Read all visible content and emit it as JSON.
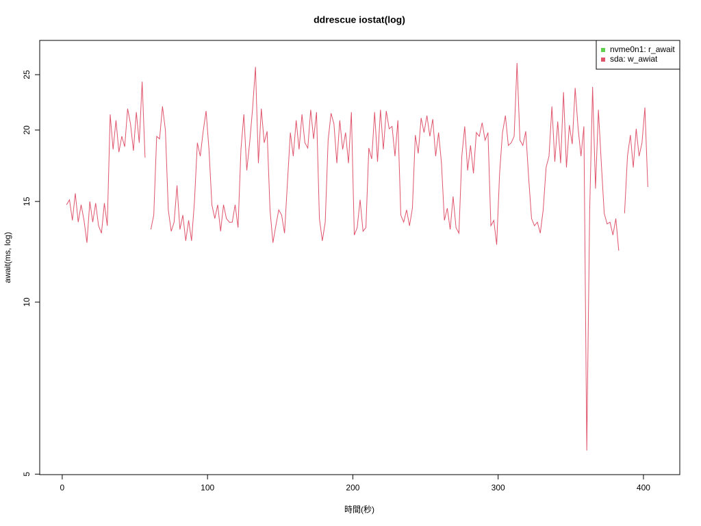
{
  "chart_data": {
    "type": "line",
    "title": "ddrescue iostat(log)",
    "xlabel": "時間(秒)",
    "ylabel": "await(ms, log)",
    "xlim": [
      -15.5,
      425
    ],
    "ylim": [
      4.99,
      28.7
    ],
    "xticks": [
      0,
      100,
      200,
      300,
      400
    ],
    "yticks": [
      5,
      10,
      15,
      20,
      25
    ],
    "ylog": true,
    "legend": "top-right",
    "series": [
      {
        "name": "nvme0n1: r_await",
        "color": "#61D04F",
        "x": [],
        "values": []
      },
      {
        "name": "sda: w_awiat",
        "color": "#DF536B",
        "x": [
          3,
          5,
          7,
          9,
          11,
          13,
          15,
          17,
          19,
          21,
          23,
          25,
          27,
          29,
          31,
          33,
          35,
          37,
          39,
          41,
          43,
          45,
          47,
          49,
          51,
          53,
          55,
          57,
          59,
          61,
          63,
          65,
          67,
          69,
          71,
          73,
          75,
          77,
          79,
          81,
          83,
          85,
          87,
          89,
          91,
          93,
          95,
          97,
          99,
          101,
          103,
          105,
          107,
          109,
          111,
          113,
          115,
          117,
          119,
          121,
          123,
          125,
          127,
          129,
          131,
          133,
          135,
          137,
          139,
          141,
          143,
          145,
          147,
          149,
          151,
          153,
          155,
          157,
          159,
          161,
          163,
          165,
          167,
          169,
          171,
          173,
          175,
          177,
          179,
          181,
          183,
          185,
          187,
          189,
          191,
          193,
          195,
          197,
          199,
          201,
          203,
          205,
          207,
          209,
          211,
          213,
          215,
          217,
          219,
          221,
          223,
          225,
          227,
          229,
          231,
          233,
          235,
          237,
          239,
          241,
          243,
          245,
          247,
          249,
          251,
          253,
          255,
          257,
          259,
          261,
          263,
          265,
          267,
          269,
          271,
          273,
          275,
          277,
          279,
          281,
          283,
          285,
          287,
          289,
          291,
          293,
          295,
          297,
          299,
          301,
          303,
          305,
          307,
          309,
          311,
          313,
          315,
          317,
          319,
          321,
          323,
          325,
          327,
          329,
          331,
          333,
          335,
          337,
          339,
          341,
          343,
          345,
          347,
          349,
          351,
          353,
          355,
          357,
          359,
          361,
          363,
          365,
          367,
          369,
          371,
          373,
          375,
          377,
          379,
          381,
          383,
          385,
          387,
          389,
          391,
          393,
          395,
          397,
          399,
          401,
          403
        ],
        "values": [
          14.8,
          15.1,
          13.9,
          15.5,
          13.8,
          14.8,
          13.9,
          12.7,
          15,
          13.8,
          14.9,
          13.6,
          13.2,
          14.9,
          13.6,
          21.3,
          18.5,
          20.8,
          18.3,
          19.5,
          18.7,
          21.8,
          20.5,
          18.4,
          21.5,
          19,
          24.3,
          17.9,
          null,
          13.4,
          14.2,
          19.5,
          19.3,
          22,
          20,
          14.5,
          13.3,
          13.8,
          16,
          13.4,
          14.2,
          12.8,
          13.9,
          12.8,
          15,
          19,
          18,
          19.9,
          21.6,
          18.5,
          14.8,
          14,
          14.8,
          13.3,
          14.8,
          14,
          13.8,
          13.8,
          14.8,
          13.5,
          18.5,
          21.3,
          17,
          19,
          21.8,
          25.8,
          17.5,
          21.8,
          19,
          19.9,
          14.5,
          12.7,
          13.6,
          14.5,
          14.2,
          13.2,
          16.2,
          19.8,
          18,
          20.8,
          18.5,
          21.3,
          19,
          18.6,
          21.7,
          19.3,
          21.5,
          14,
          12.8,
          13.8,
          19.2,
          21.4,
          20.5,
          17.5,
          20.8,
          18.5,
          19.8,
          17.5,
          21.5,
          13.1,
          13.5,
          15.1,
          13.3,
          13.5,
          18.6,
          17.8,
          21.5,
          17.6,
          21.7,
          18.5,
          21.6,
          20.1,
          20.3,
          18,
          20.8,
          14.2,
          13.8,
          14.5,
          13.6,
          14.6,
          19.6,
          18.2,
          21,
          19.8,
          21.2,
          19.5,
          20.9,
          18,
          19.8,
          17.5,
          13.9,
          14.6,
          13.4,
          15.3,
          13.5,
          13.2,
          18,
          20.3,
          17,
          18.8,
          16.8,
          19.8,
          19.5,
          20.6,
          19.2,
          19.8,
          13.6,
          13.9,
          12.6,
          16.8,
          19.8,
          21.2,
          18.8,
          19,
          19.5,
          26.2,
          19.2,
          18.8,
          19.9,
          16.5,
          14,
          13.6,
          13.8,
          13.2,
          14.5,
          17.2,
          18,
          22,
          17.6,
          20.7,
          17.5,
          23.3,
          17.2,
          20.4,
          18.9,
          23.7,
          20.2,
          18,
          20.3,
          5.5,
          14.5,
          23.8,
          15.8,
          21.7,
          17.5,
          14.3,
          13.7,
          13.8,
          13.1,
          14,
          12.3,
          null,
          14.3,
          18,
          19.6,
          17.2,
          20.1,
          18,
          19,
          21.9,
          15.9
        ]
      }
    ]
  }
}
